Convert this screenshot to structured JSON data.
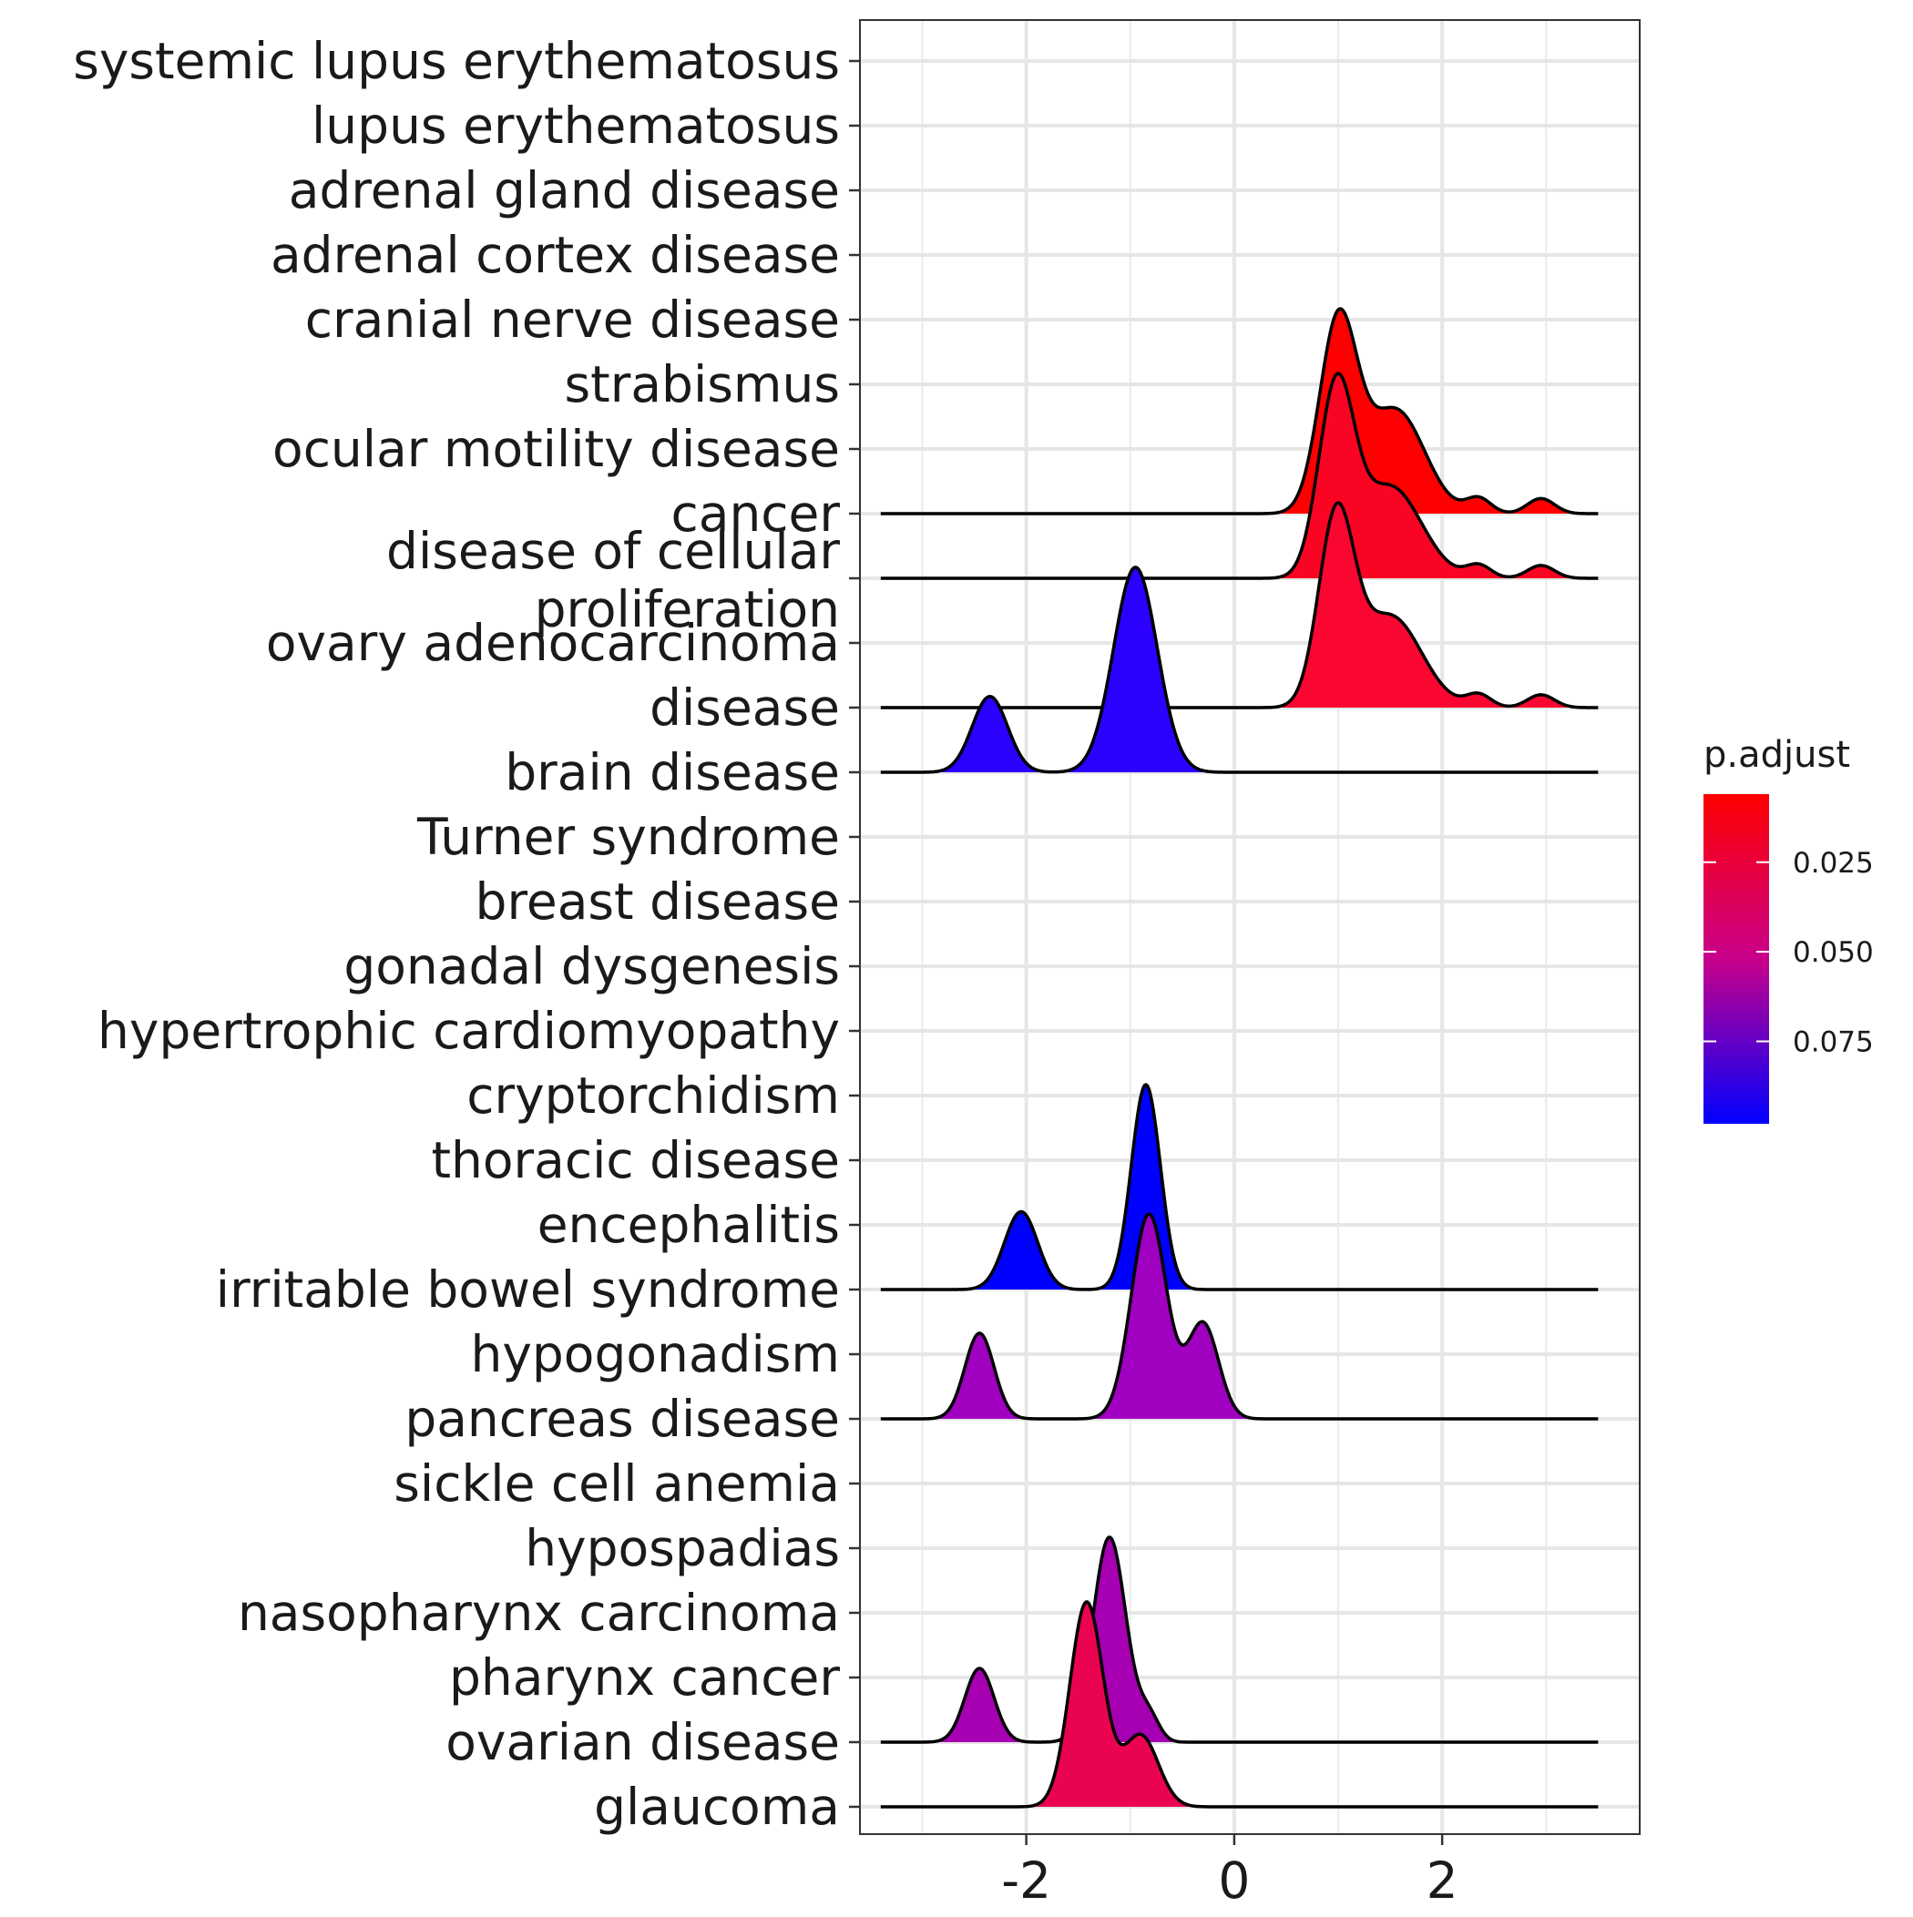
{
  "chart_data": {
    "type": "ridgeline",
    "xlim": [
      -3.6,
      3.9
    ],
    "x_ticks": [
      -2,
      0,
      2
    ],
    "x_tick_labels": [
      "-2",
      "0",
      "2"
    ],
    "grid": "on",
    "legend_position": "right",
    "categories": [
      "systemic lupus erythematosus",
      "lupus erythematosus",
      "adrenal gland disease",
      "adrenal cortex disease",
      "cranial nerve disease",
      "strabismus",
      "ocular motility disease",
      "cancer",
      "disease of cellular\nproliferation",
      "ovary adenocarcinoma",
      "disease",
      "brain disease",
      "Turner syndrome",
      "breast disease",
      "gonadal dysgenesis",
      "hypertrophic cardiomyopathy",
      "cryptorchidism",
      "thoracic disease",
      "encephalitis",
      "irritable bowel syndrome",
      "hypogonadism",
      "pancreas disease",
      "sickle cell anemia",
      "hypospadias",
      "nasopharynx carcinoma",
      "pharynx cancer",
      "ovarian disease",
      "glaucoma"
    ],
    "ridges": [
      {
        "category": "cancer",
        "color": "#ff0000",
        "peaks": [
          {
            "mu": 1.0,
            "sd": 0.18,
            "w": 1.0
          },
          {
            "mu": 1.55,
            "sd": 0.28,
            "w": 0.55
          },
          {
            "mu": 2.35,
            "sd": 0.12,
            "w": 0.08
          },
          {
            "mu": 2.95,
            "sd": 0.13,
            "w": 0.08
          }
        ]
      },
      {
        "category": "disease of cellular\nproliferation",
        "color": "#f90422",
        "peaks": [
          {
            "mu": 0.98,
            "sd": 0.17,
            "w": 1.0
          },
          {
            "mu": 1.5,
            "sd": 0.3,
            "w": 0.5
          },
          {
            "mu": 2.35,
            "sd": 0.12,
            "w": 0.07
          },
          {
            "mu": 2.95,
            "sd": 0.13,
            "w": 0.07
          }
        ]
      },
      {
        "category": "disease",
        "color": "#f90631",
        "peaks": [
          {
            "mu": 0.98,
            "sd": 0.17,
            "w": 1.0
          },
          {
            "mu": 1.5,
            "sd": 0.3,
            "w": 0.5
          },
          {
            "mu": 2.35,
            "sd": 0.12,
            "w": 0.07
          },
          {
            "mu": 2.95,
            "sd": 0.13,
            "w": 0.07
          }
        ]
      },
      {
        "category": "brain disease",
        "color": "#2c00ff",
        "peaks": [
          {
            "mu": -2.35,
            "sd": 0.17,
            "w": 0.37
          },
          {
            "mu": -0.95,
            "sd": 0.21,
            "w": 1.0
          }
        ]
      },
      {
        "category": "irritable bowel syndrome",
        "color": "#0000ff",
        "peaks": [
          {
            "mu": -2.05,
            "sd": 0.16,
            "w": 0.38
          },
          {
            "mu": -0.85,
            "sd": 0.14,
            "w": 1.0
          }
        ]
      },
      {
        "category": "pancreas disease",
        "color": "#a000c0",
        "peaks": [
          {
            "mu": -2.45,
            "sd": 0.14,
            "w": 0.36
          },
          {
            "mu": -0.82,
            "sd": 0.17,
            "w": 0.86
          },
          {
            "mu": -0.3,
            "sd": 0.15,
            "w": 0.4
          }
        ]
      },
      {
        "category": "ovarian disease",
        "color": "#a600b2",
        "peaks": [
          {
            "mu": -2.45,
            "sd": 0.14,
            "w": 0.36
          },
          {
            "mu": -1.2,
            "sd": 0.16,
            "w": 1.0
          },
          {
            "mu": -0.82,
            "sd": 0.1,
            "w": 0.12
          }
        ]
      },
      {
        "category": "glaucoma",
        "color": "#ea0350",
        "peaks": [
          {
            "mu": -1.42,
            "sd": 0.16,
            "w": 1.0
          },
          {
            "mu": -0.9,
            "sd": 0.17,
            "w": 0.35
          }
        ]
      }
    ],
    "legend": {
      "title": "p.adjust",
      "ticks": [
        0.025,
        0.05,
        0.075
      ],
      "tick_labels": [
        "0.025",
        "0.050",
        "0.075"
      ],
      "range": [
        0.006,
        0.098
      ],
      "color_low": "#ff0000",
      "color_high": "#0000ff"
    }
  }
}
